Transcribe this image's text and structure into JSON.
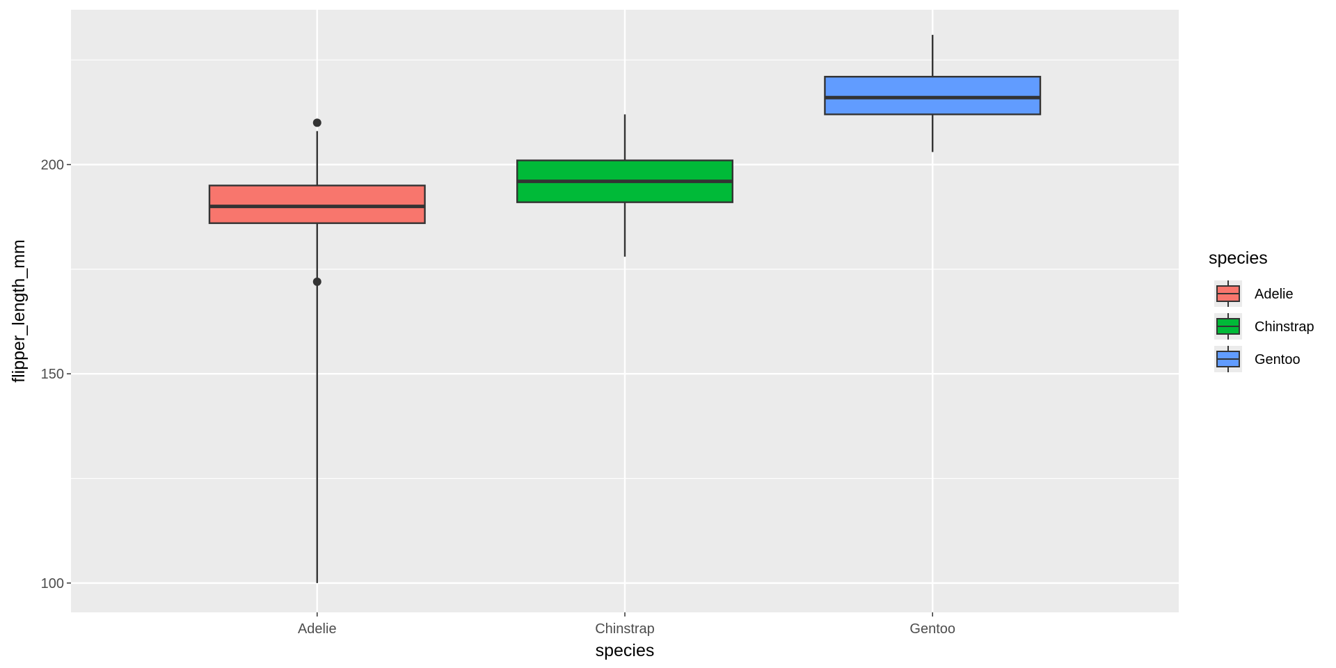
{
  "chart_data": {
    "type": "boxplot",
    "title": "",
    "xlabel": "species",
    "ylabel": "flipper_length_mm",
    "categories": [
      "Adelie",
      "Chinstrap",
      "Gentoo"
    ],
    "ylim": [
      93,
      237
    ],
    "y_ticks": [
      100,
      150,
      200
    ],
    "y_minor_ticks": [
      125,
      175,
      225
    ],
    "grid": true,
    "legend": {
      "title": "species",
      "placement": "right",
      "entries": [
        "Adelie",
        "Chinstrap",
        "Gentoo"
      ]
    },
    "colors": {
      "Adelie": "#F8766D",
      "Chinstrap": "#00BA38",
      "Gentoo": "#619CFF",
      "panel_background": "#EBEBEB",
      "grid": "#FFFFFF",
      "box_outline": "#333333"
    },
    "series": [
      {
        "category": "Adelie",
        "whisker_low": 100,
        "q1": 186,
        "median": 190,
        "q3": 195,
        "whisker_high": 208,
        "outliers": [
          210,
          172
        ]
      },
      {
        "category": "Chinstrap",
        "whisker_low": 178,
        "q1": 191,
        "median": 196,
        "q3": 201,
        "whisker_high": 212,
        "outliers": []
      },
      {
        "category": "Gentoo",
        "whisker_low": 203,
        "q1": 212,
        "median": 216,
        "q3": 221,
        "whisker_high": 231,
        "outliers": []
      }
    ]
  }
}
